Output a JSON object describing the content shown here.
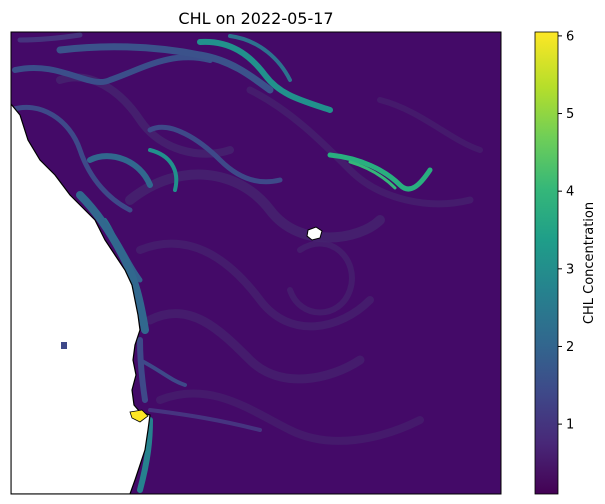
{
  "chart_data": {
    "type": "heatmap",
    "title": "CHL on 2022-05-17",
    "xlabel": "",
    "ylabel": "",
    "colorbar": {
      "label": "CHL Concentration",
      "range": [
        0.1,
        6.05
      ],
      "ticks": [
        1,
        2,
        3,
        4,
        5,
        6
      ],
      "tick_labels": [
        "1",
        "2",
        "3",
        "4",
        "5",
        "6"
      ],
      "colormap": "viridis"
    },
    "grid": false,
    "legend": "none",
    "description_values": {
      "background_level": 0.3,
      "filament_level": 2.2,
      "coastal_peak": 6.0
    },
    "colors": {
      "viridis": [
        "#440154",
        "#482878",
        "#3e4989",
        "#31688e",
        "#26828e",
        "#1f9e89",
        "#35b779",
        "#6ece58",
        "#b5de2b",
        "#fde725"
      ],
      "land": "#ffffff",
      "coastline": "#000000"
    }
  }
}
